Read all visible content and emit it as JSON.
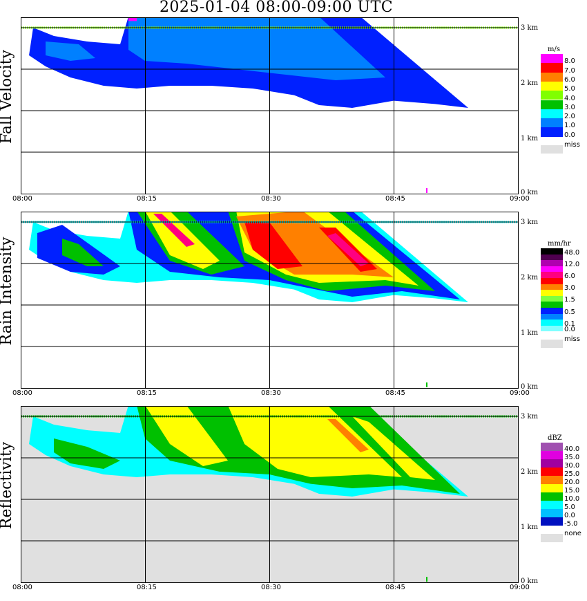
{
  "title": "2025-01-04   08:00-09:00 UTC",
  "x_ticks": [
    "08:00",
    "08:15",
    "08:30",
    "08:45",
    "09:00"
  ],
  "height_ticks": [
    "3 km",
    "2 km",
    "1 km",
    "0 km"
  ],
  "chart_data": [
    {
      "type": "heatmap",
      "name": "fall-velocity",
      "ylabel": "Fall Velocity",
      "unit": "m/s",
      "xlim": [
        "08:00",
        "09:00"
      ],
      "ylim_km": [
        0,
        3.2
      ],
      "legend": [
        {
          "label": "8.0",
          "color": "#ff00ff"
        },
        {
          "label": "7.0",
          "color": "#ff0000"
        },
        {
          "label": "6.0",
          "color": "#ff8000"
        },
        {
          "label": "5.0",
          "color": "#ffff00"
        },
        {
          "label": "4.0",
          "color": "#80ff00"
        },
        {
          "label": "3.0",
          "color": "#00c000"
        },
        {
          "label": "2.0",
          "color": "#00ffff"
        },
        {
          "label": "1.0",
          "color": "#0080ff"
        },
        {
          "label": "0.0",
          "color": "#0020ff"
        }
      ],
      "missing": {
        "label": "miss",
        "color": "#e0e0e0"
      },
      "background": "#ffffff",
      "layers": [
        {
          "color": "#0020ff",
          "points": [
            [
              1.5,
              3.0
            ],
            [
              4,
              2.85
            ],
            [
              8,
              2.75
            ],
            [
              12,
              2.7
            ],
            [
              13,
              3.2
            ],
            [
              41,
              3.2
            ],
            [
              54,
              1.55
            ],
            [
              50,
              1.62
            ],
            [
              45,
              1.68
            ],
            [
              40,
              1.55
            ],
            [
              36,
              1.6
            ],
            [
              33,
              1.78
            ],
            [
              28,
              1.9
            ],
            [
              23,
              1.95
            ],
            [
              18,
              1.95
            ],
            [
              14,
              1.9
            ],
            [
              10,
              1.95
            ],
            [
              6,
              2.1
            ],
            [
              3,
              2.3
            ],
            [
              1,
              2.5
            ]
          ]
        },
        {
          "color": "#0080ff",
          "points": [
            [
              13,
              3.2
            ],
            [
              36,
              3.2
            ],
            [
              44,
              2.1
            ],
            [
              38,
              2.05
            ],
            [
              32,
              2.15
            ],
            [
              26,
              2.25
            ],
            [
              20,
              2.35
            ],
            [
              15,
              2.4
            ],
            [
              13,
              2.6
            ]
          ]
        },
        {
          "color": "#0080ff",
          "points": [
            [
              3,
              2.75
            ],
            [
              7,
              2.7
            ],
            [
              9,
              2.45
            ],
            [
              6,
              2.4
            ],
            [
              3,
              2.5
            ]
          ]
        },
        {
          "color": "#ff00ff",
          "points": [
            [
              13,
              3.2
            ],
            [
              14,
              3.2
            ],
            [
              14,
              3.12
            ],
            [
              13,
              3.12
            ]
          ]
        }
      ]
    },
    {
      "type": "heatmap",
      "name": "rain-intensity",
      "ylabel": "Rain Intensity",
      "unit": "mm/hr",
      "xlim": [
        "08:00",
        "09:00"
      ],
      "ylim_km": [
        0,
        3.2
      ],
      "legend": [
        {
          "label": "48.0",
          "color": "#000000"
        },
        {
          "label": "",
          "color": "#500050"
        },
        {
          "label": "12.0",
          "color": "#b000b0"
        },
        {
          "label": "",
          "color": "#ff00ff"
        },
        {
          "label": "6.0",
          "color": "#ff0080"
        },
        {
          "label": "",
          "color": "#ff0000"
        },
        {
          "label": "3.0",
          "color": "#ff8000"
        },
        {
          "label": "",
          "color": "#ffff00"
        },
        {
          "label": "1.5",
          "color": "#80ff40"
        },
        {
          "label": "",
          "color": "#00c000"
        },
        {
          "label": "0.5",
          "color": "#0020ff"
        },
        {
          "label": "",
          "color": "#0080ff"
        },
        {
          "label": "0.1",
          "color": "#00ffff"
        },
        {
          "label": "0.0",
          "color": "#80ffff"
        }
      ],
      "missing": {
        "label": "miss",
        "color": "#e0e0e0"
      },
      "background": "#ffffff",
      "layers": [
        {
          "color": "#00ffff",
          "points": [
            [
              1.5,
              3.0
            ],
            [
              4,
              2.85
            ],
            [
              8,
              2.75
            ],
            [
              12,
              2.7
            ],
            [
              13,
              3.2
            ],
            [
              41,
              3.2
            ],
            [
              54,
              1.55
            ],
            [
              50,
              1.62
            ],
            [
              45,
              1.68
            ],
            [
              40,
              1.55
            ],
            [
              36,
              1.6
            ],
            [
              33,
              1.78
            ],
            [
              28,
              1.9
            ],
            [
              23,
              1.95
            ],
            [
              18,
              1.95
            ],
            [
              14,
              1.9
            ],
            [
              10,
              1.95
            ],
            [
              6,
              2.1
            ],
            [
              3,
              2.3
            ],
            [
              1,
              2.5
            ]
          ]
        },
        {
          "color": "#0020ff",
          "points": [
            [
              2,
              2.8
            ],
            [
              5,
              2.95
            ],
            [
              12,
              2.2
            ],
            [
              10,
              2.05
            ],
            [
              6,
              2.1
            ],
            [
              2,
              2.35
            ]
          ]
        },
        {
          "color": "#0020ff",
          "points": [
            [
              13,
              3.2
            ],
            [
              40,
              3.2
            ],
            [
              53,
              1.6
            ],
            [
              46,
              1.75
            ],
            [
              40,
              1.65
            ],
            [
              35,
              1.8
            ],
            [
              30,
              1.95
            ],
            [
              24,
              2.0
            ],
            [
              18,
              2.1
            ],
            [
              14,
              2.5
            ]
          ]
        },
        {
          "color": "#00c000",
          "points": [
            [
              14,
              3.2
            ],
            [
              20,
              3.2
            ],
            [
              27,
              2.2
            ],
            [
              23,
              2.05
            ],
            [
              18,
              2.3
            ]
          ]
        },
        {
          "color": "#00c000",
          "points": [
            [
              25,
              3.2
            ],
            [
              39,
              3.2
            ],
            [
              50,
              1.75
            ],
            [
              44,
              1.85
            ],
            [
              37,
              1.75
            ],
            [
              32,
              1.95
            ],
            [
              27,
              2.3
            ]
          ]
        },
        {
          "color": "#00c000",
          "points": [
            [
              5,
              2.7
            ],
            [
              7,
              2.6
            ],
            [
              10,
              2.2
            ],
            [
              8,
              2.2
            ],
            [
              5,
              2.4
            ]
          ]
        },
        {
          "color": "#ffff00",
          "points": [
            [
              15,
              3.2
            ],
            [
              18,
              3.2
            ],
            [
              24,
              2.3
            ],
            [
              22,
              2.15
            ],
            [
              18,
              2.4
            ]
          ]
        },
        {
          "color": "#ffff00",
          "points": [
            [
              26,
              3.2
            ],
            [
              37,
              3.2
            ],
            [
              48,
              1.85
            ],
            [
              44,
              1.95
            ],
            [
              36,
              1.9
            ],
            [
              32,
              2.05
            ],
            [
              27,
              2.45
            ]
          ]
        },
        {
          "color": "#ff8000",
          "points": [
            [
              26,
              3.1
            ],
            [
              34,
              3.2
            ],
            [
              45,
              2.0
            ],
            [
              40,
              2.05
            ],
            [
              33,
              2.05
            ],
            [
              28,
              2.5
            ]
          ]
        },
        {
          "color": "#ff0000",
          "points": [
            [
              27,
              3.0
            ],
            [
              30,
              3.0
            ],
            [
              34,
              2.2
            ],
            [
              31,
              2.15
            ],
            [
              28,
              2.5
            ]
          ]
        },
        {
          "color": "#ff0000",
          "points": [
            [
              36,
              2.9
            ],
            [
              38,
              2.9
            ],
            [
              43,
              2.15
            ],
            [
              41,
              2.1
            ]
          ]
        },
        {
          "color": "#ff0080",
          "points": [
            [
              16,
              3.15
            ],
            [
              17,
              3.15
            ],
            [
              21,
              2.6
            ],
            [
              20,
              2.55
            ]
          ]
        },
        {
          "color": "#ff0080",
          "points": [
            [
              37,
              2.75
            ],
            [
              38,
              2.8
            ],
            [
              42,
              2.25
            ],
            [
              41,
              2.2
            ]
          ]
        }
      ]
    },
    {
      "type": "heatmap",
      "name": "reflectivity",
      "ylabel": "Reflectivity",
      "unit": "dBZ",
      "xlim": [
        "08:00",
        "09:00"
      ],
      "ylim_km": [
        0,
        3.2
      ],
      "legend": [
        {
          "label": "40.0",
          "color": "#a050b0"
        },
        {
          "label": "35.0",
          "color": "#e000e0"
        },
        {
          "label": "30.0",
          "color": "#a000a0"
        },
        {
          "label": "25.0",
          "color": "#ff0000"
        },
        {
          "label": "20.0",
          "color": "#ff8000"
        },
        {
          "label": "15.0",
          "color": "#ffff00"
        },
        {
          "label": "10.0",
          "color": "#00c000"
        },
        {
          "label": "5.0",
          "color": "#00ffff"
        },
        {
          "label": "0.0",
          "color": "#00c0ff"
        },
        {
          "label": "-5.0",
          "color": "#0010c0"
        }
      ],
      "missing": {
        "label": "none",
        "color": "#e0e0e0"
      },
      "background": "#e0e0e0",
      "layers": [
        {
          "color": "#00ffff",
          "points": [
            [
              1.5,
              3.0
            ],
            [
              4,
              2.85
            ],
            [
              8,
              2.75
            ],
            [
              12,
              2.7
            ],
            [
              13,
              3.2
            ],
            [
              41,
              3.2
            ],
            [
              54,
              1.55
            ],
            [
              50,
              1.62
            ],
            [
              45,
              1.68
            ],
            [
              40,
              1.55
            ],
            [
              36,
              1.6
            ],
            [
              33,
              1.78
            ],
            [
              28,
              1.9
            ],
            [
              23,
              1.95
            ],
            [
              18,
              1.95
            ],
            [
              14,
              1.9
            ],
            [
              10,
              1.95
            ],
            [
              6,
              2.1
            ],
            [
              3,
              2.3
            ],
            [
              1,
              2.5
            ]
          ]
        },
        {
          "color": "#00c000",
          "points": [
            [
              4,
              2.6
            ],
            [
              8,
              2.45
            ],
            [
              12,
              2.2
            ],
            [
              10,
              2.05
            ],
            [
              6,
              2.15
            ],
            [
              4,
              2.35
            ]
          ]
        },
        {
          "color": "#00c000",
          "points": [
            [
              14,
              3.2
            ],
            [
              42,
              3.2
            ],
            [
              53,
              1.6
            ],
            [
              46,
              1.75
            ],
            [
              40,
              1.7
            ],
            [
              35,
              1.78
            ],
            [
              30,
              1.95
            ],
            [
              24,
              2.0
            ],
            [
              18,
              2.2
            ],
            [
              15,
              2.6
            ]
          ]
        },
        {
          "color": "#ffff00",
          "points": [
            [
              15,
              3.2
            ],
            [
              20,
              3.2
            ],
            [
              25,
              2.2
            ],
            [
              22,
              2.1
            ],
            [
              18,
              2.5
            ]
          ]
        },
        {
          "color": "#ffff00",
          "points": [
            [
              25,
              3.2
            ],
            [
              37,
              3.2
            ],
            [
              46,
              1.9
            ],
            [
              42,
              1.95
            ],
            [
              35,
              1.9
            ],
            [
              31,
              2.05
            ],
            [
              27,
              2.5
            ]
          ]
        },
        {
          "color": "#ffff00",
          "points": [
            [
              40,
              3.0
            ],
            [
              42,
              2.9
            ],
            [
              50,
              1.85
            ],
            [
              47,
              1.9
            ]
          ]
        },
        {
          "color": "#ff8000",
          "points": [
            [
              37,
              2.95
            ],
            [
              38,
              2.95
            ],
            [
              42,
              2.4
            ],
            [
              41,
              2.35
            ]
          ]
        }
      ]
    }
  ]
}
